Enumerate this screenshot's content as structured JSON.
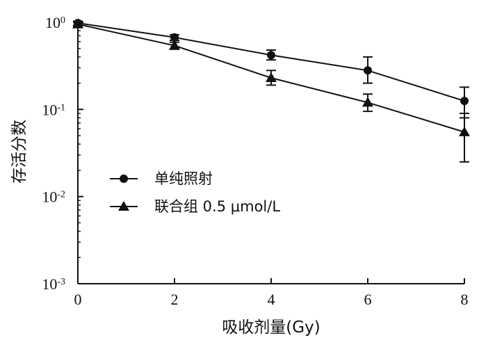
{
  "chart_data": {
    "type": "line",
    "title": "",
    "xlabel": "吸收剂量(Gy)",
    "ylabel": "存活分数",
    "x": [
      0,
      2,
      4,
      6,
      8
    ],
    "x_ticks": [
      "0",
      "2",
      "4",
      "6",
      "8"
    ],
    "xlim": [
      0,
      8
    ],
    "ylim": [
      0.001,
      1
    ],
    "y_scale": "log",
    "y_ticks": [
      {
        "value": 1,
        "base": "10",
        "exp": "0"
      },
      {
        "value": 0.1,
        "base": "10",
        "exp": "-1"
      },
      {
        "value": 0.01,
        "base": "10",
        "exp": "-2"
      },
      {
        "value": 0.001,
        "base": "10",
        "exp": "-3"
      }
    ],
    "grid": false,
    "legend_position": "center-left",
    "series": [
      {
        "name": "单纯照射",
        "marker": "circle",
        "values": [
          0.98,
          0.67,
          0.42,
          0.28,
          0.125
        ],
        "error_low": [
          0.92,
          0.62,
          0.37,
          0.2,
          0.08
        ],
        "error_high": [
          1.03,
          0.72,
          0.48,
          0.4,
          0.18
        ]
      },
      {
        "name": "联合组 0.5 μmol/L",
        "marker": "triangle",
        "values": [
          0.95,
          0.54,
          0.23,
          0.12,
          0.055
        ],
        "error_low": [
          0.9,
          0.49,
          0.19,
          0.095,
          0.025
        ],
        "error_high": [
          1.0,
          0.59,
          0.28,
          0.15,
          0.09
        ]
      }
    ],
    "colors": {
      "axis": "#111111",
      "series": "#111111"
    }
  }
}
